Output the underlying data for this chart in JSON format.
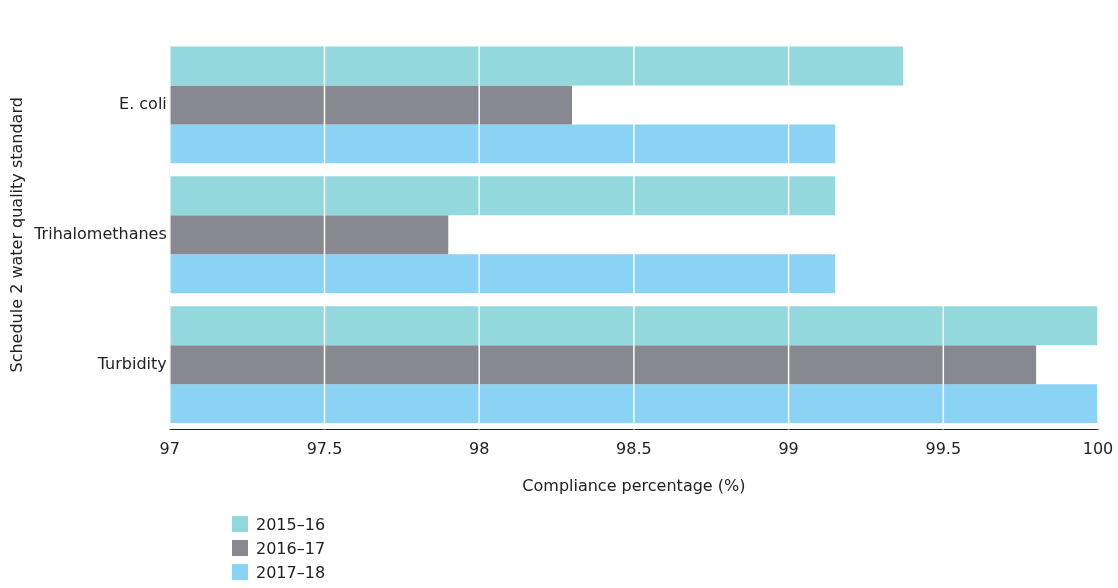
{
  "chart_data": {
    "type": "bar",
    "orientation": "horizontal",
    "xlabel": "Compliance percentage (%)",
    "ylabel": "Schedule 2 water quality standard",
    "categories": [
      "E. coli",
      "Trihalomethanes",
      "Turbidity"
    ],
    "series": [
      {
        "name": "2015–16",
        "color": "#93d8dc",
        "values": [
          99.37,
          99.15,
          100
        ]
      },
      {
        "name": "2016–17",
        "color": "#878890",
        "values": [
          98.3,
          97.9,
          99.8
        ]
      },
      {
        "name": "2017–18",
        "color": "#8bd3f5",
        "values": [
          99.15,
          99.15,
          100
        ]
      }
    ],
    "xlim": [
      97,
      100
    ],
    "xticks": [
      97,
      97.5,
      98,
      98.5,
      99,
      99.5,
      100
    ],
    "grid": "x",
    "legend": "bottom left"
  }
}
